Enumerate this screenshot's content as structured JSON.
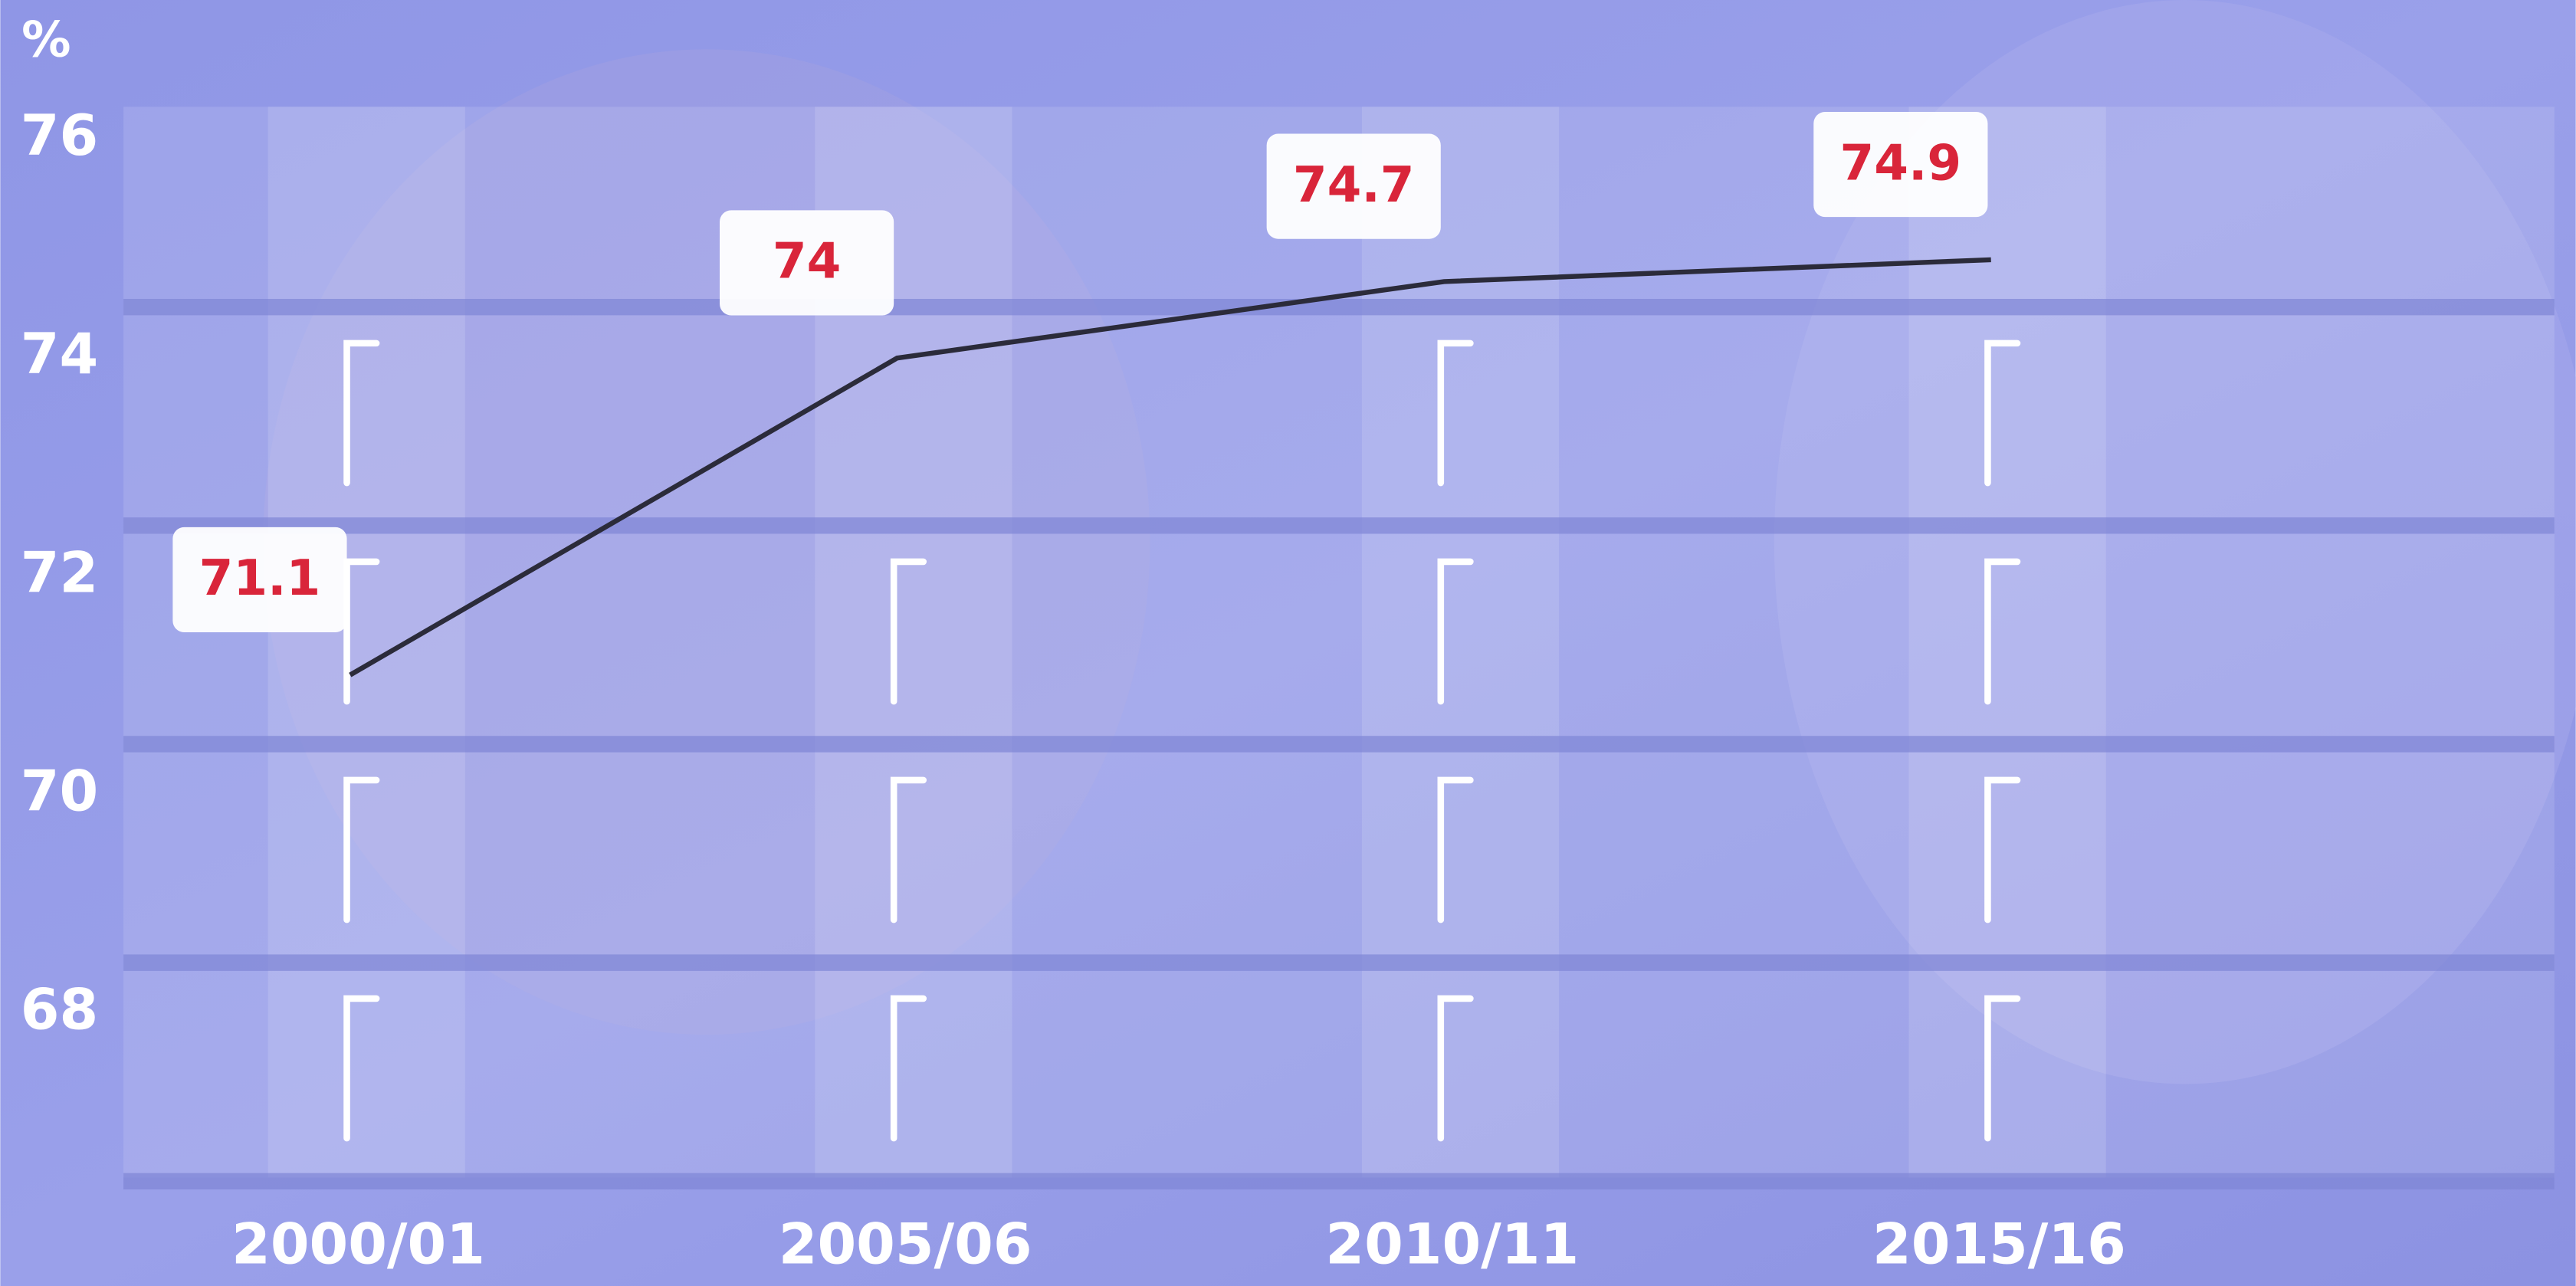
{
  "chart_data": {
    "type": "line",
    "y_label": "%",
    "categories": [
      "2000/01",
      "2005/06",
      "2010/11",
      "2015/16"
    ],
    "values": [
      71.1,
      74,
      74.7,
      74.9
    ],
    "color": "#2b2b3a",
    "label_color": "#d9253a",
    "ylim": [
      66.5,
      76.3
    ],
    "yticks": [
      68,
      70,
      72,
      74,
      76
    ],
    "grid": true
  }
}
